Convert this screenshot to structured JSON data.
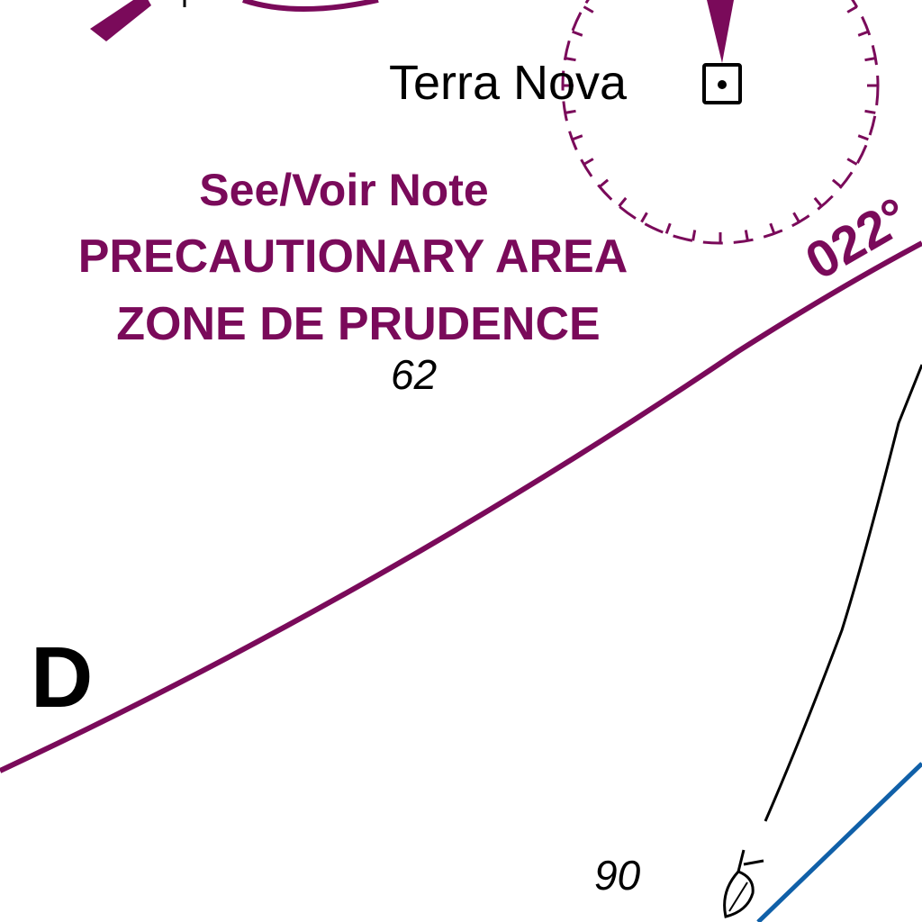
{
  "map": {
    "place_label": "Terra Nova",
    "note_lines": {
      "line1": "See/Voir Note",
      "line2": "PRECAUTIONARY AREA",
      "line3": "ZONE DE PRUDENCE"
    },
    "soundings": [
      "62",
      "90"
    ],
    "area_letter": "D",
    "bearing_label": "022°",
    "symbols": {
      "platform": "square-dot-platform-icon",
      "fish": "fish-haven-icon"
    },
    "colors": {
      "magenta": "#7a0a5a",
      "black": "#000000",
      "blue": "#1060a8"
    }
  }
}
